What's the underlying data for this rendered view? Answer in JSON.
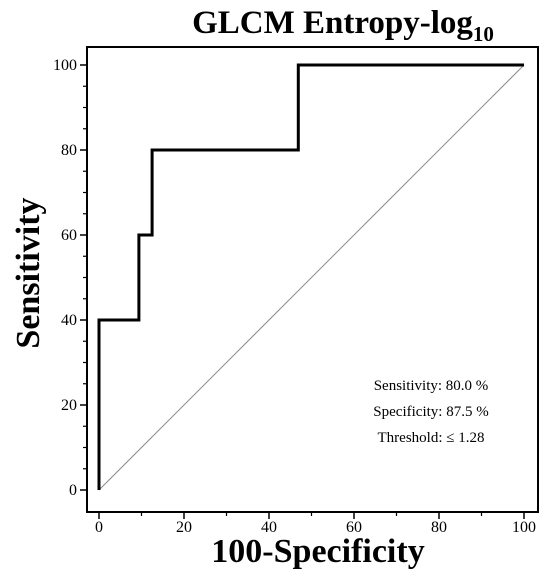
{
  "chart_data": {
    "type": "line",
    "title": {
      "main": "GLCM Entropy-log",
      "subscript": "10"
    },
    "xlabel": "100-Specificity",
    "ylabel": "Sensitivity",
    "xlim": [
      0,
      100
    ],
    "ylim": [
      0,
      100
    ],
    "x_ticks": [
      0,
      20,
      40,
      60,
      80,
      100
    ],
    "y_ticks": [
      0,
      20,
      40,
      60,
      80,
      100
    ],
    "x_tick_labels": [
      "0",
      "20",
      "40",
      "60",
      "80",
      "100"
    ],
    "y_tick_labels": [
      "0",
      "20",
      "40",
      "60",
      "80",
      "100"
    ],
    "grid": false,
    "series": [
      {
        "x": [
          0,
          0,
          9.4,
          9.4,
          12.5,
          12.5,
          46.9,
          46.9,
          100
        ],
        "y": [
          0,
          40,
          40,
          60,
          60,
          80,
          80,
          100,
          100
        ],
        "style": "step",
        "color": "#000000"
      },
      {
        "x": [
          0,
          100
        ],
        "y": [
          0,
          100
        ],
        "style": "diagonal-reference",
        "color": "#8c8c8c"
      }
    ],
    "annotations": [
      "Sensitivity: 80.0 %",
      "Specificity: 87.5 %",
      "Threshold: ≤ 1.28"
    ]
  }
}
